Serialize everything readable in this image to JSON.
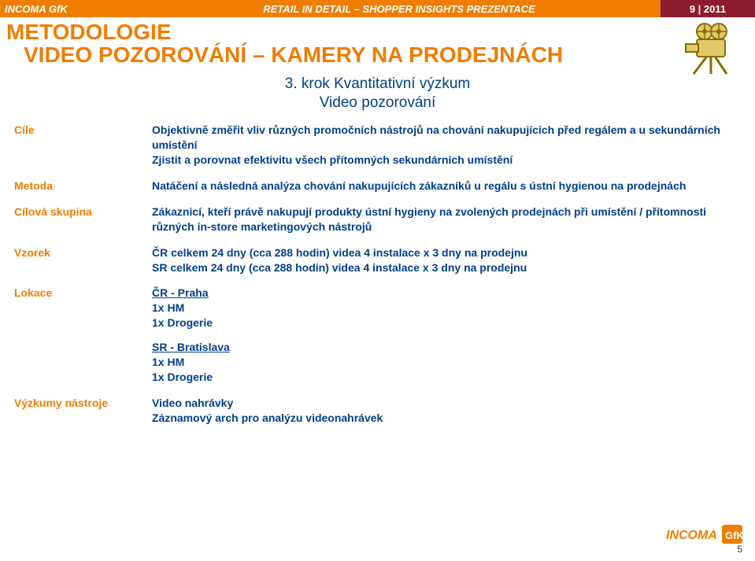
{
  "header": {
    "brand": "INCOMA GfK",
    "center": "RETAIL IN DETAIL – SHOPPER INSIGHTS PREZENTACE",
    "right": "9 | 2011",
    "bg_left": "#ef7d00",
    "bg_center": "#ef7d00",
    "bg_right": "#8c1b2f",
    "text_color": "#ffffff"
  },
  "title": {
    "line1": "METODOLOGIE",
    "line2": "VIDEO POZOROVÁNÍ – KAMERY NA PRODEJNÁCH",
    "color": "#ef7d00",
    "fontsize": 28
  },
  "step": {
    "line1": "3. krok Kvantitativní výzkum",
    "line2": "Video pozorování",
    "color": "#003f8a",
    "fontsize": 19
  },
  "rows": {
    "cile": {
      "label": "Cíle",
      "text": "Objektivně změřit vliv různých promočních nástrojů na chování nakupujících před regálem a u sekundárních umístění\nZjistit a porovnat efektivitu všech přítomných sekundárních umístění"
    },
    "metoda": {
      "label": "Metoda",
      "text": "Natáčení a následná analýza chování nakupujících zákazníků u regálu s ústní hygienou na prodejnách"
    },
    "cilova": {
      "label": "Cílová skupina",
      "text": "Zákaznicí, kteří právě nakupují produkty ústní hygieny na zvolených prodejnách při umístění / přítomnosti různých in-store marketingových nástrojů"
    },
    "vzorek": {
      "label": "Vzorek",
      "text": "ČR celkem 24 dny (cca 288 hodin) videa 4 instalace x 3 dny na prodejnu\nSR celkem 24 dny (cca 288 hodin) videa 4 instalace x 3 dny na prodejnu"
    },
    "lokace": {
      "label": "Lokace",
      "cr_head": "ČR - Praha",
      "cr_l1": "1x HM",
      "cr_l2": "1x Drogerie",
      "sr_head": "SR - Bratislava",
      "sr_l1": "1x HM",
      "sr_l2": "1x Drogerie"
    },
    "vyzkumy": {
      "label": "Výzkumy nástroje",
      "l1": "Video nahrávky",
      "l2": "Záznamový arch pro analýzu videonahrávek"
    }
  },
  "styles": {
    "label_color": "#ef7d00",
    "value_color": "#003f8a",
    "label_fontsize": 14,
    "value_fontsize": 14
  },
  "page_number": "5",
  "footer_logo_incoma": "INCOMA",
  "footer_logo_gfk": "GfK",
  "icon": {
    "name": "video-camera-icon"
  }
}
